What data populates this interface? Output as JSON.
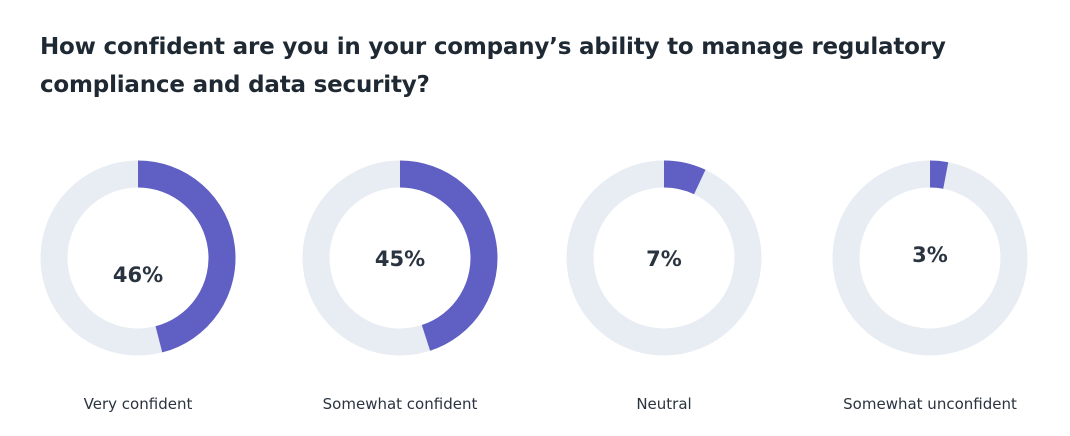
{
  "chart_data": {
    "type": "pie",
    "variant": "donut",
    "title": "How confident are you in your company’s ability to manage regulatory compliance and data security?",
    "categories": [
      "Very confident",
      "Somewhat confident",
      "Neutral",
      "Somewhat unconfident"
    ],
    "values": [
      46,
      45,
      7,
      3
    ],
    "labels": [
      "46%",
      "45%",
      "7%",
      "3%"
    ],
    "colors": {
      "filled": "#5f5fc4",
      "track": "#e8ecf3"
    }
  }
}
